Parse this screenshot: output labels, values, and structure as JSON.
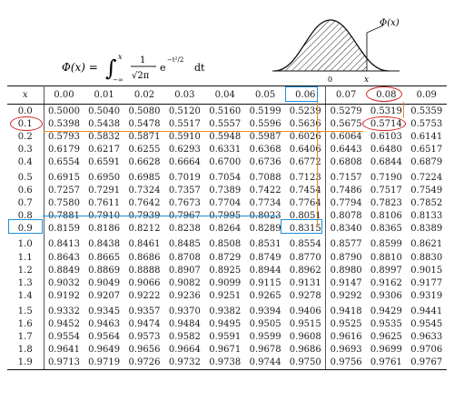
{
  "formula": {
    "lhs": "Φ(x) =",
    "upper": "x",
    "lower": "−∞",
    "frac_num": "1",
    "frac_den": "√2π",
    "exp_base": "e",
    "exponent": "−t²/2",
    "dt": "dt"
  },
  "curve": {
    "phi_label": "Φ(x)",
    "x_label": "x",
    "zero_label": "0"
  },
  "table": {
    "header_x": "x",
    "columns": [
      "0.00",
      "0.01",
      "0.02",
      "0.03",
      "0.04",
      "0.05",
      "0.06",
      "0.07",
      "0.08",
      "0.09"
    ],
    "rows": [
      {
        "x": "0.0",
        "v": [
          "0.5000",
          "0.5040",
          "0.5080",
          "0.5120",
          "0.5160",
          "0.5199",
          "0.5239",
          "0.5279",
          "0.5319",
          "0.5359"
        ]
      },
      {
        "x": "0.1",
        "v": [
          "0.5398",
          "0.5438",
          "0.5478",
          "0.5517",
          "0.5557",
          "0.5596",
          "0.5636",
          "0.5675",
          "0.5714",
          "0.5753"
        ]
      },
      {
        "x": "0.2",
        "v": [
          "0.5793",
          "0.5832",
          "0.5871",
          "0.5910",
          "0.5948",
          "0.5987",
          "0.6026",
          "0.6064",
          "0.6103",
          "0.6141"
        ]
      },
      {
        "x": "0.3",
        "v": [
          "0.6179",
          "0.6217",
          "0.6255",
          "0.6293",
          "0.6331",
          "0.6368",
          "0.6406",
          "0.6443",
          "0.6480",
          "0.6517"
        ]
      },
      {
        "x": "0.4",
        "v": [
          "0.6554",
          "0.6591",
          "0.6628",
          "0.6664",
          "0.6700",
          "0.6736",
          "0.6772",
          "0.6808",
          "0.6844",
          "0.6879"
        ]
      },
      {
        "x": "0.5",
        "v": [
          "0.6915",
          "0.6950",
          "0.6985",
          "0.7019",
          "0.7054",
          "0.7088",
          "0.7123",
          "0.7157",
          "0.7190",
          "0.7224"
        ]
      },
      {
        "x": "0.6",
        "v": [
          "0.7257",
          "0.7291",
          "0.7324",
          "0.7357",
          "0.7389",
          "0.7422",
          "0.7454",
          "0.7486",
          "0.7517",
          "0.7549"
        ]
      },
      {
        "x": "0.7",
        "v": [
          "0.7580",
          "0.7611",
          "0.7642",
          "0.7673",
          "0.7704",
          "0.7734",
          "0.7764",
          "0.7794",
          "0.7823",
          "0.7852"
        ]
      },
      {
        "x": "0.8",
        "v": [
          "0.7881",
          "0.7910",
          "0.7939",
          "0.7967",
          "0.7995",
          "0.8023",
          "0.8051",
          "0.8078",
          "0.8106",
          "0.8133"
        ]
      },
      {
        "x": "0.9",
        "v": [
          "0.8159",
          "0.8186",
          "0.8212",
          "0.8238",
          "0.8264",
          "0.8289",
          "0.8315",
          "0.8340",
          "0.8365",
          "0.8389"
        ]
      },
      {
        "x": "1.0",
        "v": [
          "0.8413",
          "0.8438",
          "0.8461",
          "0.8485",
          "0.8508",
          "0.8531",
          "0.8554",
          "0.8577",
          "0.8599",
          "0.8621"
        ]
      },
      {
        "x": "1.1",
        "v": [
          "0.8643",
          "0.8665",
          "0.8686",
          "0.8708",
          "0.8729",
          "0.8749",
          "0.8770",
          "0.8790",
          "0.8810",
          "0.8830"
        ]
      },
      {
        "x": "1.2",
        "v": [
          "0.8849",
          "0.8869",
          "0.8888",
          "0.8907",
          "0.8925",
          "0.8944",
          "0.8962",
          "0.8980",
          "0.8997",
          "0.9015"
        ]
      },
      {
        "x": "1.3",
        "v": [
          "0.9032",
          "0.9049",
          "0.9066",
          "0.9082",
          "0.9099",
          "0.9115",
          "0.9131",
          "0.9147",
          "0.9162",
          "0.9177"
        ]
      },
      {
        "x": "1.4",
        "v": [
          "0.9192",
          "0.9207",
          "0.9222",
          "0.9236",
          "0.9251",
          "0.9265",
          "0.9278",
          "0.9292",
          "0.9306",
          "0.9319"
        ]
      },
      {
        "x": "1.5",
        "v": [
          "0.9332",
          "0.9345",
          "0.9357",
          "0.9370",
          "0.9382",
          "0.9394",
          "0.9406",
          "0.9418",
          "0.9429",
          "0.9441"
        ]
      },
      {
        "x": "1.6",
        "v": [
          "0.9452",
          "0.9463",
          "0.9474",
          "0.9484",
          "0.9495",
          "0.9505",
          "0.9515",
          "0.9525",
          "0.9535",
          "0.9545"
        ]
      },
      {
        "x": "1.7",
        "v": [
          "0.9554",
          "0.9564",
          "0.9573",
          "0.9582",
          "0.9591",
          "0.9599",
          "0.9608",
          "0.9616",
          "0.9625",
          "0.9633"
        ]
      },
      {
        "x": "1.8",
        "v": [
          "0.9641",
          "0.9649",
          "0.9656",
          "0.9664",
          "0.9671",
          "0.9678",
          "0.9686",
          "0.9693",
          "0.9699",
          "0.9706"
        ]
      },
      {
        "x": "1.9",
        "v": [
          "0.9713",
          "0.9719",
          "0.9726",
          "0.9732",
          "0.9738",
          "0.9744",
          "0.9750",
          "0.9756",
          "0.9761",
          "0.9767"
        ]
      }
    ]
  },
  "annotation_colors": {
    "blue": "#1d8fd8",
    "red": "#d21f1f",
    "orange": "#f08a1c"
  }
}
